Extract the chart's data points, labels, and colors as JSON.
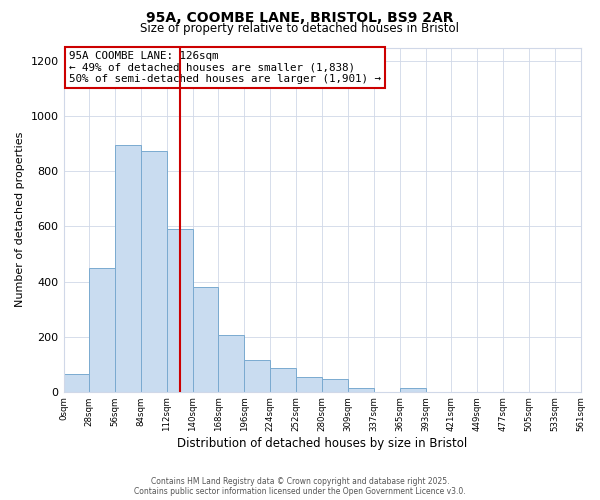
{
  "title": "95A, COOMBE LANE, BRISTOL, BS9 2AR",
  "subtitle": "Size of property relative to detached houses in Bristol",
  "xlabel": "Distribution of detached houses by size in Bristol",
  "ylabel": "Number of detached properties",
  "bin_edges": [
    0,
    28,
    56,
    84,
    112,
    140,
    168,
    196,
    224,
    252,
    280,
    309,
    337,
    365,
    393,
    421,
    449,
    477,
    505,
    533,
    561
  ],
  "bin_counts": [
    65,
    450,
    895,
    875,
    590,
    380,
    205,
    115,
    85,
    55,
    45,
    15,
    0,
    15,
    0,
    0,
    0,
    0,
    0,
    0
  ],
  "bar_facecolor": "#c9dcf0",
  "bar_edgecolor": "#7aaad0",
  "vline_x": 126,
  "vline_color": "#cc0000",
  "annotation_text_line1": "95A COOMBE LANE: 126sqm",
  "annotation_text_line2": "← 49% of detached houses are smaller (1,838)",
  "annotation_text_line3": "50% of semi-detached houses are larger (1,901) →",
  "box_edgecolor": "#cc0000",
  "ylim": [
    0,
    1250
  ],
  "yticks": [
    0,
    200,
    400,
    600,
    800,
    1000,
    1200
  ],
  "background_color": "#ffffff",
  "grid_color": "#d0d8e8",
  "footer_line1": "Contains HM Land Registry data © Crown copyright and database right 2025.",
  "footer_line2": "Contains public sector information licensed under the Open Government Licence v3.0."
}
